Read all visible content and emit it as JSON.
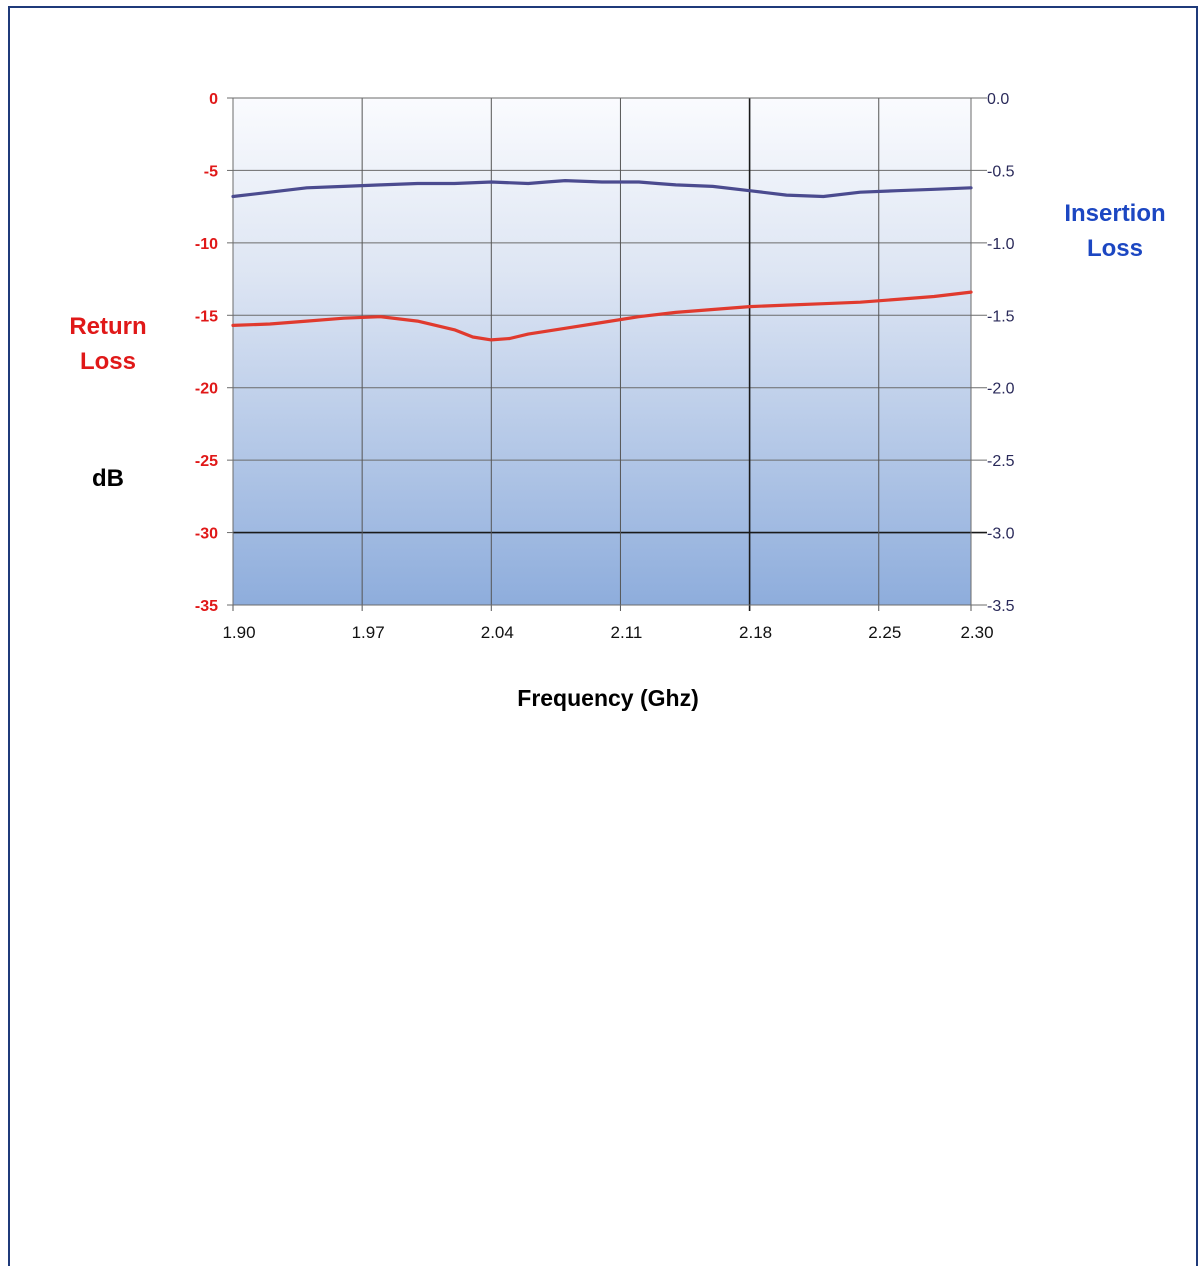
{
  "chart_data": {
    "type": "line",
    "title": "",
    "xlabel": "Frequency (Ghz)",
    "ylabel_left": "dB",
    "left_axis_title": "Return Loss",
    "right_axis_title": "Insertion Loss",
    "x_ticks": [
      "1.90",
      "1.97",
      "2.04",
      "2.11",
      "2.18",
      "2.25",
      "2.30"
    ],
    "x_tick_values": [
      1.9,
      1.97,
      2.04,
      2.11,
      2.18,
      2.25,
      2.3
    ],
    "xlim": [
      1.9,
      2.3
    ],
    "y_left_ticks": [
      "0",
      "-5",
      "-10",
      "-15",
      "-20",
      "-25",
      "-30",
      "-35"
    ],
    "y_left_lim": [
      -35,
      0
    ],
    "y_right_ticks": [
      "0.0",
      "-0.5",
      "-1.0",
      "-1.5",
      "-2.0",
      "-2.5",
      "-3.0",
      "-3.5"
    ],
    "y_right_lim": [
      -3.5,
      0.0
    ],
    "grid": true,
    "series": [
      {
        "name": "Insertion Loss",
        "axis": "right",
        "color": "#4b4b8f",
        "x": [
          1.9,
          1.92,
          1.94,
          1.96,
          1.98,
          2.0,
          2.02,
          2.04,
          2.06,
          2.07,
          2.08,
          2.1,
          2.12,
          2.13,
          2.14,
          2.16,
          2.18,
          2.2,
          2.22,
          2.24,
          2.26,
          2.28,
          2.3
        ],
        "values": [
          -0.68,
          -0.65,
          -0.62,
          -0.61,
          -0.6,
          -0.59,
          -0.59,
          -0.58,
          -0.59,
          -0.58,
          -0.57,
          -0.58,
          -0.58,
          -0.59,
          -0.6,
          -0.61,
          -0.64,
          -0.67,
          -0.68,
          -0.65,
          -0.64,
          -0.63,
          -0.62
        ]
      },
      {
        "name": "Return Loss",
        "axis": "left",
        "color": "#e03a2e",
        "x": [
          1.9,
          1.92,
          1.94,
          1.96,
          1.98,
          2.0,
          2.02,
          2.03,
          2.04,
          2.05,
          2.06,
          2.08,
          2.1,
          2.12,
          2.14,
          2.16,
          2.18,
          2.2,
          2.22,
          2.24,
          2.26,
          2.28,
          2.3
        ],
        "values": [
          -15.7,
          -15.6,
          -15.4,
          -15.2,
          -15.1,
          -15.4,
          -16.0,
          -16.5,
          -16.7,
          -16.6,
          -16.3,
          -15.9,
          -15.5,
          -15.1,
          -14.8,
          -14.6,
          -14.4,
          -14.3,
          -14.2,
          -14.1,
          -13.9,
          -13.7,
          -13.4
        ]
      }
    ]
  }
}
